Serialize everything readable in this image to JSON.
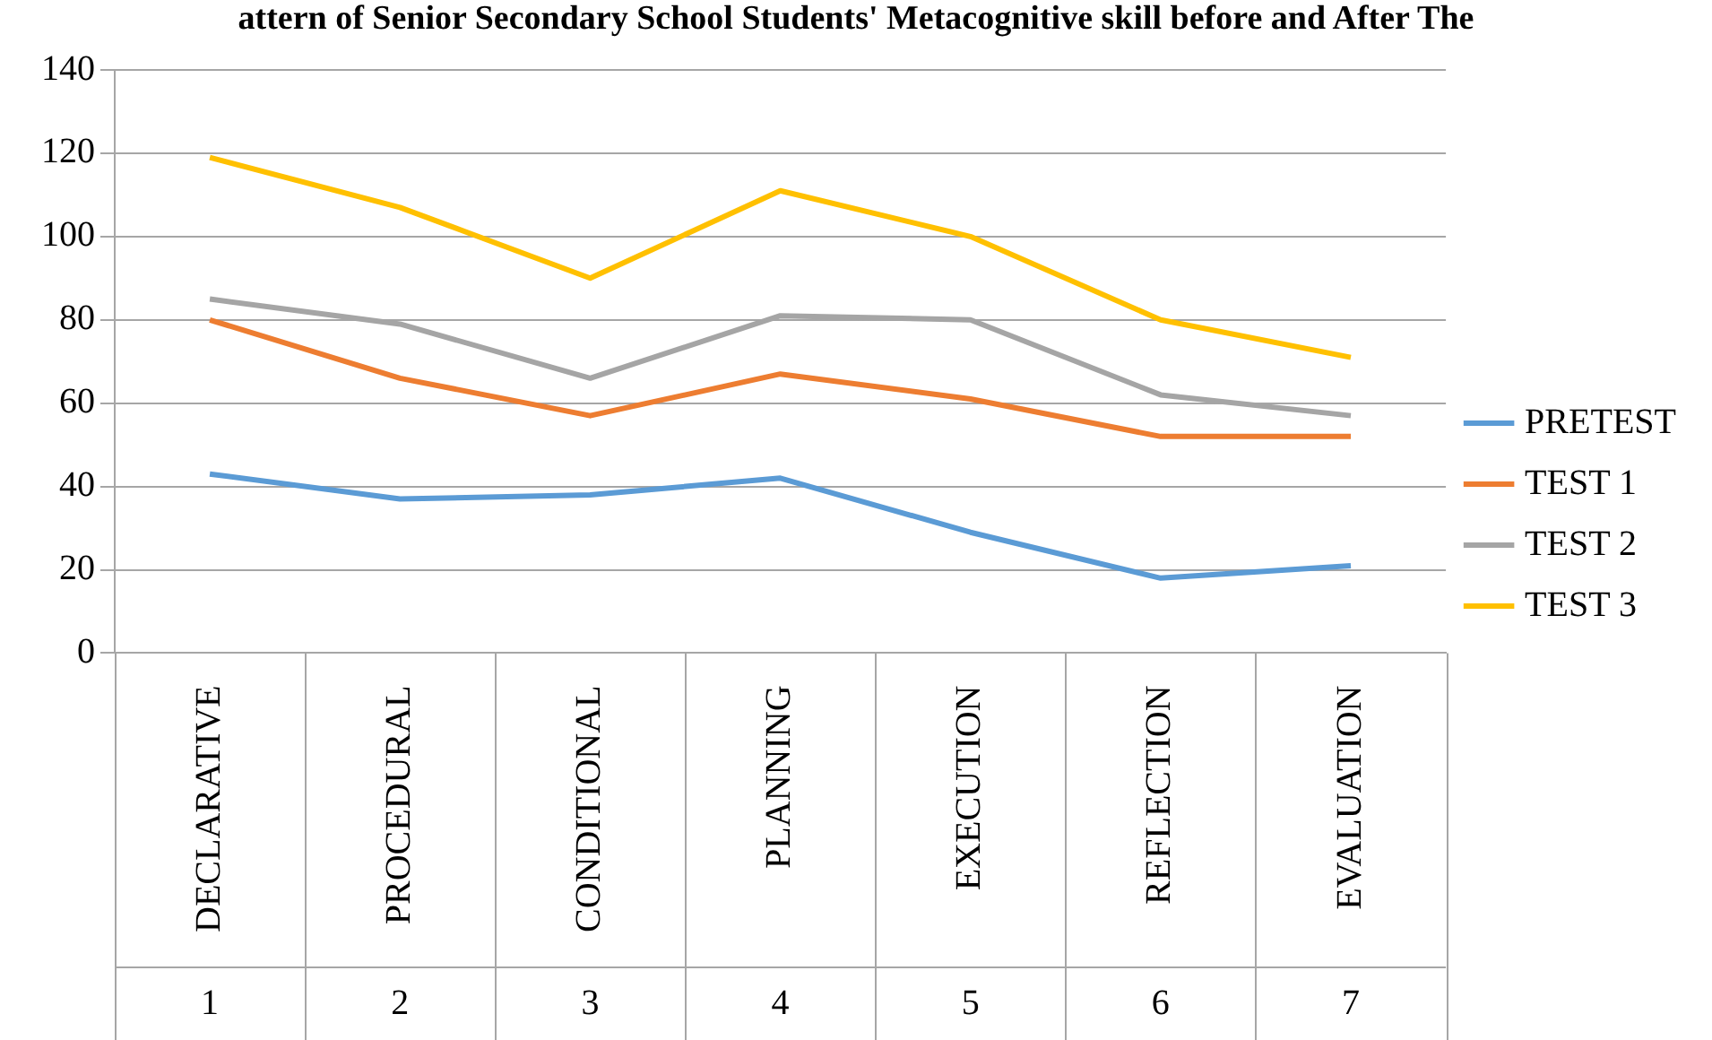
{
  "chart_data": {
    "type": "line",
    "title": "attern of Senior Secondary School Students' Metacognitive skill before and After The",
    "categories": [
      "DECLARATIVE",
      "PROCEDURAL",
      "CONDITIONAL",
      "PLANNING",
      "EXECUTION",
      "REFLECTION",
      "EVALUATION"
    ],
    "series": [
      {
        "name": "PRETEST",
        "color": "#5b9bd5",
        "values": [
          43,
          37,
          38,
          42,
          29,
          18,
          21
        ]
      },
      {
        "name": "TEST 1",
        "color": "#ed7d31",
        "values": [
          80,
          66,
          57,
          67,
          61,
          52,
          52
        ]
      },
      {
        "name": "TEST 2",
        "color": "#a5a5a5",
        "values": [
          85,
          79,
          66,
          81,
          80,
          62,
          57
        ]
      },
      {
        "name": "TEST 3",
        "color": "#ffc000",
        "values": [
          119,
          107,
          90,
          111,
          100,
          80,
          71
        ]
      }
    ],
    "annotations": [
      "1",
      "2",
      "3",
      "4",
      "5",
      "6",
      "7"
    ],
    "ylim": [
      0,
      140
    ],
    "yticks": [
      0,
      20,
      40,
      60,
      80,
      100,
      120,
      140
    ],
    "grid": "y",
    "legend": "right",
    "marker": "none",
    "line_style": "solid"
  }
}
